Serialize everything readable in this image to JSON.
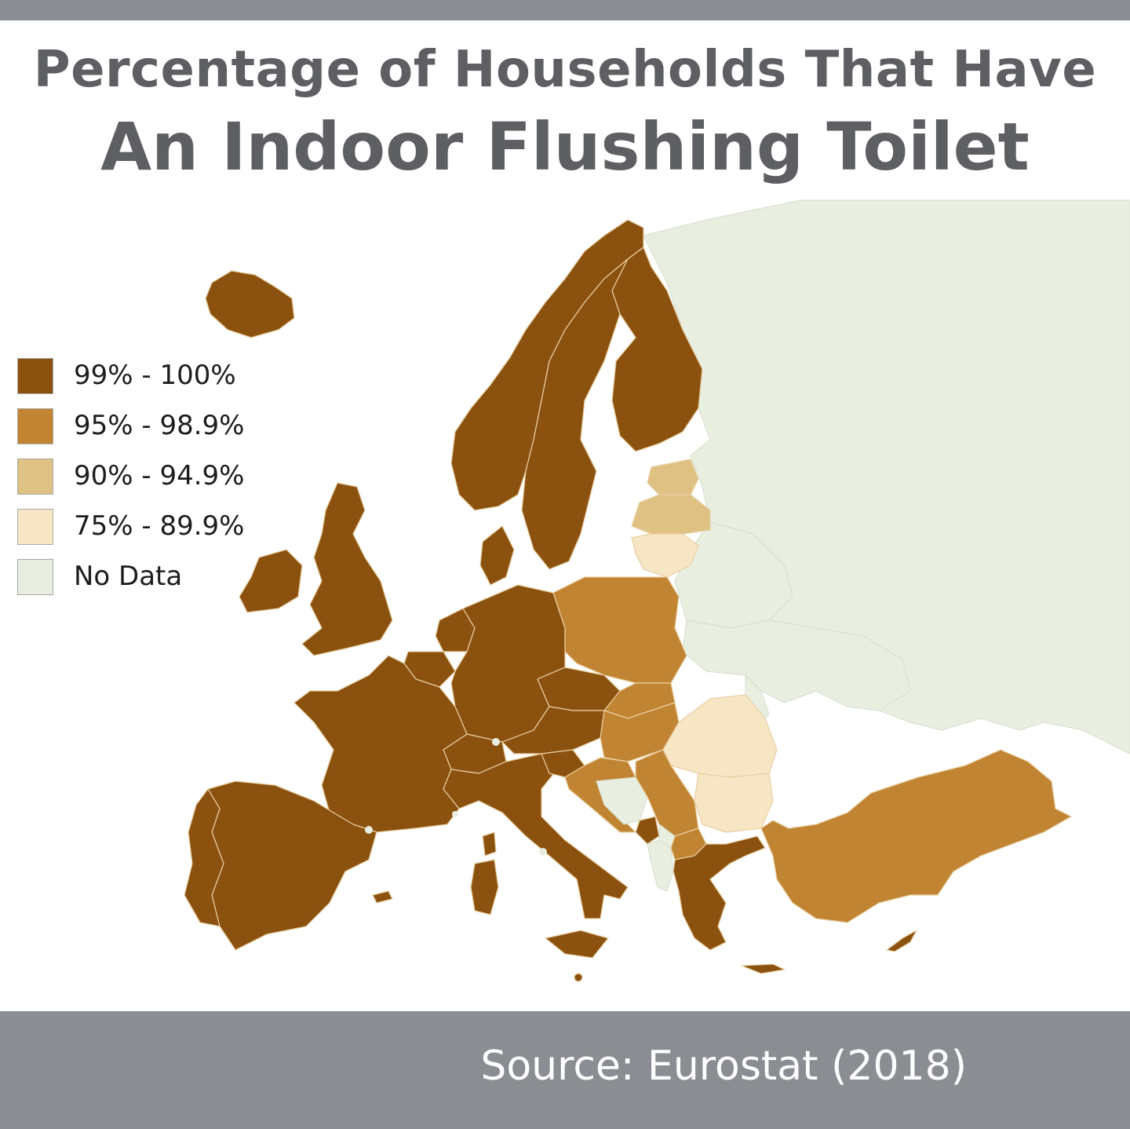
{
  "title": {
    "line1": "Percentage of Households That Have",
    "line2": "An Indoor Flushing Toilet"
  },
  "legend": [
    {
      "label": "99% - 100%",
      "color": "#8b520f"
    },
    {
      "label": "95% - 98.9%",
      "color": "#c18432"
    },
    {
      "label": "90% - 94.9%",
      "color": "#dfc183"
    },
    {
      "label": "75% - 89.9%",
      "color": "#f6e6c3"
    },
    {
      "label": "No Data",
      "color": "#e8eee0"
    }
  ],
  "source": "Source: Eurostat (2018)",
  "colors": {
    "band_99_100": "#8b520f",
    "band_95_98_9": "#c18432",
    "band_90_94_9": "#dfc183",
    "band_75_89_9": "#f6e6c3",
    "no_data": "#e8eee0",
    "bars": "#8a8d91",
    "title": "#5d5f63"
  },
  "regions": [
    {
      "name": "Iceland",
      "band": "99% - 100%"
    },
    {
      "name": "Norway",
      "band": "99% - 100%"
    },
    {
      "name": "Sweden",
      "band": "99% - 100%"
    },
    {
      "name": "Finland",
      "band": "99% - 100%"
    },
    {
      "name": "United Kingdom",
      "band": "99% - 100%"
    },
    {
      "name": "Ireland",
      "band": "99% - 100%"
    },
    {
      "name": "Denmark",
      "band": "99% - 100%"
    },
    {
      "name": "Netherlands",
      "band": "99% - 100%"
    },
    {
      "name": "Belgium",
      "band": "99% - 100%"
    },
    {
      "name": "Germany",
      "band": "99% - 100%"
    },
    {
      "name": "France",
      "band": "99% - 100%"
    },
    {
      "name": "Spain",
      "band": "99% - 100%"
    },
    {
      "name": "Portugal",
      "band": "99% - 100%"
    },
    {
      "name": "Switzerland",
      "band": "99% - 100%"
    },
    {
      "name": "Austria",
      "band": "99% - 100%"
    },
    {
      "name": "Italy",
      "band": "99% - 100%"
    },
    {
      "name": "Slovenia",
      "band": "99% - 100%"
    },
    {
      "name": "Greece",
      "band": "99% - 100%"
    },
    {
      "name": "Montenegro",
      "band": "99% - 100%"
    },
    {
      "name": "Cyprus",
      "band": "99% - 100%"
    },
    {
      "name": "Malta",
      "band": "99% - 100%"
    },
    {
      "name": "Czech Republic",
      "band": "99% - 100%"
    },
    {
      "name": "Poland",
      "band": "95% - 98.9%"
    },
    {
      "name": "Slovakia",
      "band": "95% - 98.9%"
    },
    {
      "name": "Hungary",
      "band": "95% - 98.9%"
    },
    {
      "name": "Croatia",
      "band": "95% - 98.9%"
    },
    {
      "name": "Serbia",
      "band": "95% - 98.9%"
    },
    {
      "name": "North Macedonia",
      "band": "95% - 98.9%"
    },
    {
      "name": "Turkey",
      "band": "95% - 98.9%"
    },
    {
      "name": "Estonia",
      "band": "90% - 94.9%"
    },
    {
      "name": "Latvia",
      "band": "90% - 94.9%"
    },
    {
      "name": "Lithuania",
      "band": "75% - 89.9%"
    },
    {
      "name": "Romania",
      "band": "75% - 89.9%"
    },
    {
      "name": "Bulgaria",
      "band": "75% - 89.9%"
    },
    {
      "name": "Russia",
      "band": "No Data"
    },
    {
      "name": "Belarus",
      "band": "No Data"
    },
    {
      "name": "Ukraine",
      "band": "No Data"
    },
    {
      "name": "Moldova",
      "band": "No Data"
    },
    {
      "name": "Bosnia and Herzegovina",
      "band": "No Data"
    },
    {
      "name": "Albania",
      "band": "No Data"
    },
    {
      "name": "Kosovo",
      "band": "No Data"
    }
  ]
}
